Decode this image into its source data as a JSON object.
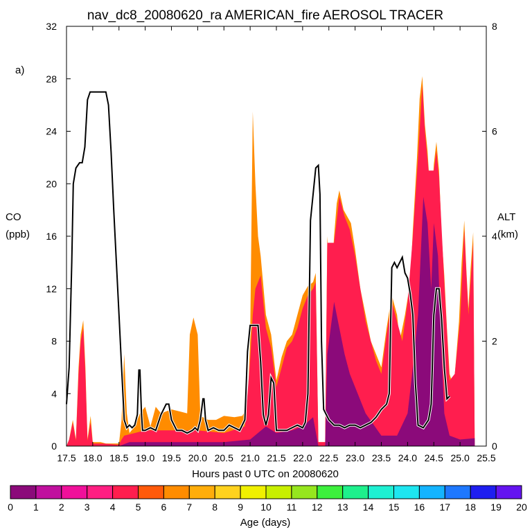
{
  "chart_data": {
    "type": "area",
    "title": "nav_dc8_20080620_ra AMERICAN_fire AEROSOL TRACER",
    "panel_label": "a)",
    "xlabel": "Hours past 0 UTC on 20080620",
    "ylabel_left": [
      "CO",
      "(ppb)"
    ],
    "ylabel_right": [
      "ALT",
      "(km)"
    ],
    "xlim": [
      17.5,
      25.5
    ],
    "ylim_left": [
      0,
      32
    ],
    "ylim_right": [
      0,
      8
    ],
    "x_ticks": [
      "17.5",
      "18.0",
      "18.5",
      "19.0",
      "19.5",
      "20.0",
      "20.5",
      "21.0",
      "21.5",
      "22.0",
      "22.5",
      "23.0",
      "23.5",
      "24.0",
      "24.5",
      "25.0",
      "25.5"
    ],
    "y_ticks_left": [
      "0",
      "4",
      "8",
      "12",
      "16",
      "20",
      "24",
      "28",
      "32"
    ],
    "y_ticks_right": [
      "0",
      "2",
      "4",
      "6",
      "8"
    ],
    "colorbar": {
      "label": "Age (days)",
      "ticks": [
        "0",
        "1",
        "2",
        "3",
        "4",
        "5",
        "6",
        "7",
        "8",
        "9",
        "10",
        "11",
        "12",
        "13",
        "14",
        "15",
        "16",
        "17",
        "18",
        "19",
        "20"
      ],
      "colors": [
        "#8b0a7a",
        "#c0109e",
        "#f0109a",
        "#ff1e82",
        "#ff1e4e",
        "#ff5a0a",
        "#ff8c00",
        "#ffad0a",
        "#ffd21e",
        "#f0f000",
        "#c8ef00",
        "#96e61e",
        "#3cf03c",
        "#1ef08c",
        "#1ef0d2",
        "#1ee6f0",
        "#14b4ff",
        "#1e78ff",
        "#1e1ef0",
        "#6414f0"
      ]
    },
    "co_total": [
      [
        17.5,
        0
      ],
      [
        17.55,
        0.5
      ],
      [
        17.62,
        2.0
      ],
      [
        17.68,
        0.5
      ],
      [
        17.73,
        6
      ],
      [
        17.77,
        8.5
      ],
      [
        17.82,
        9.6
      ],
      [
        17.86,
        6
      ],
      [
        17.9,
        0.5
      ],
      [
        17.96,
        2.3
      ],
      [
        18.0,
        0.3
      ],
      [
        18.15,
        0.3
      ],
      [
        18.25,
        0.2
      ],
      [
        18.5,
        0.2
      ],
      [
        18.55,
        2.0
      ],
      [
        18.6,
        7.0
      ],
      [
        18.65,
        2.5
      ],
      [
        18.7,
        1.0
      ],
      [
        18.8,
        1.5
      ],
      [
        18.9,
        2.5
      ],
      [
        19.0,
        3.0
      ],
      [
        19.1,
        1.5
      ],
      [
        19.2,
        3.0
      ],
      [
        19.3,
        2.5
      ],
      [
        19.5,
        2.8
      ],
      [
        19.7,
        2.6
      ],
      [
        19.8,
        2.5
      ],
      [
        19.85,
        8.5
      ],
      [
        19.92,
        9.8
      ],
      [
        20.0,
        8.5
      ],
      [
        20.05,
        2.3
      ],
      [
        20.2,
        2.0
      ],
      [
        20.35,
        2.0
      ],
      [
        20.5,
        2.3
      ],
      [
        20.7,
        2.2
      ],
      [
        20.85,
        2.3
      ],
      [
        20.95,
        3.0
      ],
      [
        21.0,
        8.0
      ],
      [
        21.05,
        25.5
      ],
      [
        21.1,
        20
      ],
      [
        21.15,
        16
      ],
      [
        21.2,
        14.5
      ],
      [
        21.3,
        10
      ],
      [
        21.4,
        8.5
      ],
      [
        21.5,
        5
      ],
      [
        21.6,
        6.8
      ],
      [
        21.7,
        8
      ],
      [
        21.8,
        8.5
      ],
      [
        21.9,
        10
      ],
      [
        22.0,
        11.5
      ],
      [
        22.1,
        12.2
      ],
      [
        22.2,
        12.5
      ],
      [
        22.25,
        13.2
      ],
      [
        22.3,
        0.3
      ],
      [
        22.38,
        0.3
      ],
      [
        22.43,
        0.3
      ],
      [
        22.47,
        16
      ],
      [
        22.52,
        13
      ],
      [
        22.56,
        13.5
      ],
      [
        22.6,
        16
      ],
      [
        22.65,
        18.5
      ],
      [
        22.7,
        19.5
      ],
      [
        22.78,
        18
      ],
      [
        22.85,
        17.5
      ],
      [
        22.92,
        17.0
      ],
      [
        23.0,
        15.0
      ],
      [
        23.1,
        12.0
      ],
      [
        23.2,
        10.0
      ],
      [
        23.3,
        8.0
      ],
      [
        23.4,
        7.0
      ],
      [
        23.5,
        6.0
      ],
      [
        23.6,
        9.0
      ],
      [
        23.7,
        11.5
      ],
      [
        23.8,
        10.0
      ],
      [
        23.85,
        8.0
      ],
      [
        23.95,
        10.0
      ],
      [
        24.05,
        12.5
      ],
      [
        24.1,
        16.5
      ],
      [
        24.18,
        22.0
      ],
      [
        24.23,
        26.5
      ],
      [
        24.28,
        28.2
      ],
      [
        24.33,
        24.5
      ],
      [
        24.38,
        22.5
      ],
      [
        24.45,
        18.0
      ],
      [
        24.5,
        21.5
      ],
      [
        24.55,
        23.2
      ],
      [
        24.6,
        21.0
      ],
      [
        24.65,
        16.0
      ],
      [
        24.7,
        13.0
      ],
      [
        24.75,
        9.0
      ],
      [
        24.8,
        5.5
      ],
      [
        24.88,
        4.5
      ],
      [
        24.92,
        6.5
      ],
      [
        24.98,
        9.5
      ],
      [
        25.03,
        14.0
      ],
      [
        25.08,
        17.2
      ],
      [
        25.12,
        13.5
      ],
      [
        25.16,
        10.5
      ],
      [
        25.2,
        13.5
      ],
      [
        25.25,
        16.3
      ],
      [
        25.28,
        0
      ]
    ],
    "co_young": [
      [
        17.5,
        0
      ],
      [
        18.5,
        0
      ],
      [
        18.7,
        0.3
      ],
      [
        19.5,
        0.3
      ],
      [
        20.5,
        0.3
      ],
      [
        21.0,
        0.5
      ],
      [
        21.3,
        1.5
      ],
      [
        21.5,
        1.0
      ],
      [
        21.8,
        1.2
      ],
      [
        22.0,
        1.5
      ],
      [
        22.2,
        2.2
      ],
      [
        22.3,
        0
      ],
      [
        22.43,
        0
      ],
      [
        22.47,
        7.0
      ],
      [
        22.6,
        11.0
      ],
      [
        22.7,
        9.0
      ],
      [
        22.8,
        7.0
      ],
      [
        22.9,
        5.5
      ],
      [
        23.0,
        4.5
      ],
      [
        23.2,
        2.5
      ],
      [
        23.5,
        0.8
      ],
      [
        23.8,
        0.8
      ],
      [
        24.0,
        2.5
      ],
      [
        24.1,
        6.0
      ],
      [
        24.2,
        10.0
      ],
      [
        24.3,
        19.0
      ],
      [
        24.38,
        17.0
      ],
      [
        24.45,
        12.0
      ],
      [
        24.5,
        17.0
      ],
      [
        24.58,
        14.5
      ],
      [
        24.65,
        7.0
      ],
      [
        24.7,
        2.5
      ],
      [
        24.8,
        0.8
      ],
      [
        25.0,
        0.5
      ],
      [
        25.28,
        0.6
      ]
    ],
    "co_orange": [
      [
        17.5,
        0
      ],
      [
        17.55,
        0.5
      ],
      [
        17.62,
        1.8
      ],
      [
        17.68,
        0.4
      ],
      [
        17.73,
        5.5
      ],
      [
        17.77,
        8.0
      ],
      [
        17.82,
        9.0
      ],
      [
        17.86,
        5.5
      ],
      [
        17.9,
        0.4
      ],
      [
        17.96,
        1.8
      ],
      [
        18.0,
        0.2
      ],
      [
        18.2,
        0.2
      ],
      [
        18.5,
        0.1
      ],
      [
        18.55,
        0.5
      ],
      [
        18.6,
        0.8
      ],
      [
        18.8,
        1.0
      ],
      [
        19.0,
        1.2
      ],
      [
        19.3,
        1.2
      ],
      [
        19.6,
        1.2
      ],
      [
        20.0,
        1.2
      ],
      [
        20.5,
        1.0
      ],
      [
        20.9,
        1.5
      ],
      [
        21.0,
        6.5
      ],
      [
        21.05,
        10
      ],
      [
        21.1,
        12
      ],
      [
        21.2,
        13
      ],
      [
        21.3,
        9
      ],
      [
        21.4,
        7.5
      ],
      [
        21.5,
        4.5
      ],
      [
        21.6,
        6.0
      ],
      [
        21.7,
        7.5
      ],
      [
        21.8,
        8.0
      ],
      [
        21.9,
        9.0
      ],
      [
        22.0,
        10.5
      ],
      [
        22.1,
        11.5
      ],
      [
        22.2,
        12.0
      ],
      [
        22.25,
        12.5
      ],
      [
        22.3,
        0.3
      ],
      [
        22.43,
        0.3
      ],
      [
        22.47,
        15.5
      ],
      [
        22.6,
        15.5
      ],
      [
        22.7,
        19.0
      ],
      [
        22.8,
        17.5
      ],
      [
        22.9,
        16.5
      ],
      [
        23.0,
        14.5
      ],
      [
        23.2,
        9.5
      ],
      [
        23.4,
        6.5
      ],
      [
        23.5,
        5.5
      ],
      [
        23.6,
        8.5
      ],
      [
        23.7,
        11.0
      ],
      [
        23.8,
        9.5
      ],
      [
        23.9,
        8.0
      ],
      [
        24.0,
        11.0
      ],
      [
        24.1,
        16.0
      ],
      [
        24.2,
        22.0
      ],
      [
        24.28,
        27.5
      ],
      [
        24.33,
        24.0
      ],
      [
        24.4,
        21.0
      ],
      [
        24.5,
        21.0
      ],
      [
        24.55,
        22.5
      ],
      [
        24.6,
        20.5
      ],
      [
        24.7,
        12.5
      ],
      [
        24.8,
        5.0
      ],
      [
        24.9,
        5.5
      ],
      [
        25.0,
        9.5
      ],
      [
        25.08,
        16.5
      ],
      [
        25.16,
        10.0
      ],
      [
        25.25,
        15.5
      ],
      [
        25.28,
        0
      ]
    ],
    "altitude_km": [
      [
        17.5,
        0.8
      ],
      [
        17.55,
        1.5
      ],
      [
        17.6,
        3.5
      ],
      [
        17.63,
        5.0
      ],
      [
        17.68,
        5.3
      ],
      [
        17.75,
        5.4
      ],
      [
        17.8,
        5.4
      ],
      [
        17.85,
        5.7
      ],
      [
        17.9,
        6.6
      ],
      [
        17.95,
        6.75
      ],
      [
        18.0,
        6.75
      ],
      [
        18.1,
        6.75
      ],
      [
        18.2,
        6.75
      ],
      [
        18.25,
        6.75
      ],
      [
        18.3,
        6.5
      ],
      [
        18.35,
        5.6
      ],
      [
        18.4,
        4.5
      ],
      [
        18.45,
        3.5
      ],
      [
        18.5,
        2.5
      ],
      [
        18.55,
        1.5
      ],
      [
        18.6,
        0.5
      ],
      [
        18.65,
        0.35
      ],
      [
        18.7,
        0.4
      ],
      [
        18.75,
        0.35
      ],
      [
        18.8,
        0.4
      ],
      [
        18.85,
        0.6
      ],
      [
        18.88,
        1.45
      ],
      [
        18.9,
        1.45
      ],
      [
        18.93,
        0.6
      ],
      [
        18.95,
        0.3
      ],
      [
        19.0,
        0.3
      ],
      [
        19.1,
        0.35
      ],
      [
        19.2,
        0.3
      ],
      [
        19.3,
        0.6
      ],
      [
        19.4,
        0.8
      ],
      [
        19.45,
        0.8
      ],
      [
        19.5,
        0.5
      ],
      [
        19.6,
        0.3
      ],
      [
        19.7,
        0.3
      ],
      [
        19.8,
        0.25
      ],
      [
        19.9,
        0.3
      ],
      [
        19.95,
        0.35
      ],
      [
        20.0,
        0.3
      ],
      [
        20.05,
        0.5
      ],
      [
        20.1,
        0.9
      ],
      [
        20.12,
        0.9
      ],
      [
        20.15,
        0.5
      ],
      [
        20.2,
        0.3
      ],
      [
        20.3,
        0.35
      ],
      [
        20.4,
        0.3
      ],
      [
        20.5,
        0.3
      ],
      [
        20.6,
        0.4
      ],
      [
        20.7,
        0.35
      ],
      [
        20.8,
        0.3
      ],
      [
        20.9,
        0.5
      ],
      [
        20.95,
        1.8
      ],
      [
        21.0,
        2.3
      ],
      [
        21.05,
        2.3
      ],
      [
        21.1,
        2.3
      ],
      [
        21.15,
        2.3
      ],
      [
        21.2,
        1.6
      ],
      [
        21.25,
        0.6
      ],
      [
        21.3,
        0.4
      ],
      [
        21.35,
        0.6
      ],
      [
        21.4,
        1.3
      ],
      [
        21.45,
        1.2
      ],
      [
        21.5,
        0.3
      ],
      [
        21.6,
        0.3
      ],
      [
        21.7,
        0.3
      ],
      [
        21.8,
        0.35
      ],
      [
        21.9,
        0.4
      ],
      [
        22.0,
        0.35
      ],
      [
        22.05,
        0.45
      ],
      [
        22.1,
        1.0
      ],
      [
        22.15,
        4.3
      ],
      [
        22.2,
        4.8
      ],
      [
        22.25,
        5.3
      ],
      [
        22.3,
        5.35
      ],
      [
        22.33,
        4.8
      ],
      [
        22.36,
        2.0
      ],
      [
        22.4,
        0.7
      ],
      [
        22.5,
        0.5
      ],
      [
        22.6,
        0.4
      ],
      [
        22.7,
        0.4
      ],
      [
        22.8,
        0.35
      ],
      [
        22.9,
        0.4
      ],
      [
        23.0,
        0.4
      ],
      [
        23.1,
        0.35
      ],
      [
        23.2,
        0.4
      ],
      [
        23.3,
        0.45
      ],
      [
        23.4,
        0.55
      ],
      [
        23.5,
        0.7
      ],
      [
        23.6,
        0.8
      ],
      [
        23.65,
        1.0
      ],
      [
        23.7,
        3.4
      ],
      [
        23.75,
        3.5
      ],
      [
        23.8,
        3.4
      ],
      [
        23.85,
        3.5
      ],
      [
        23.9,
        3.6
      ],
      [
        23.95,
        3.3
      ],
      [
        24.0,
        3.2
      ],
      [
        24.05,
        2.9
      ],
      [
        24.1,
        2.5
      ],
      [
        24.15,
        1.2
      ],
      [
        24.2,
        0.4
      ],
      [
        24.3,
        0.35
      ],
      [
        24.4,
        0.5
      ],
      [
        24.45,
        0.8
      ],
      [
        24.5,
        2.5
      ],
      [
        24.55,
        3.0
      ],
      [
        24.6,
        3.0
      ],
      [
        24.65,
        2.4
      ],
      [
        24.7,
        1.5
      ],
      [
        24.75,
        0.9
      ],
      [
        24.8,
        0.95
      ]
    ]
  }
}
